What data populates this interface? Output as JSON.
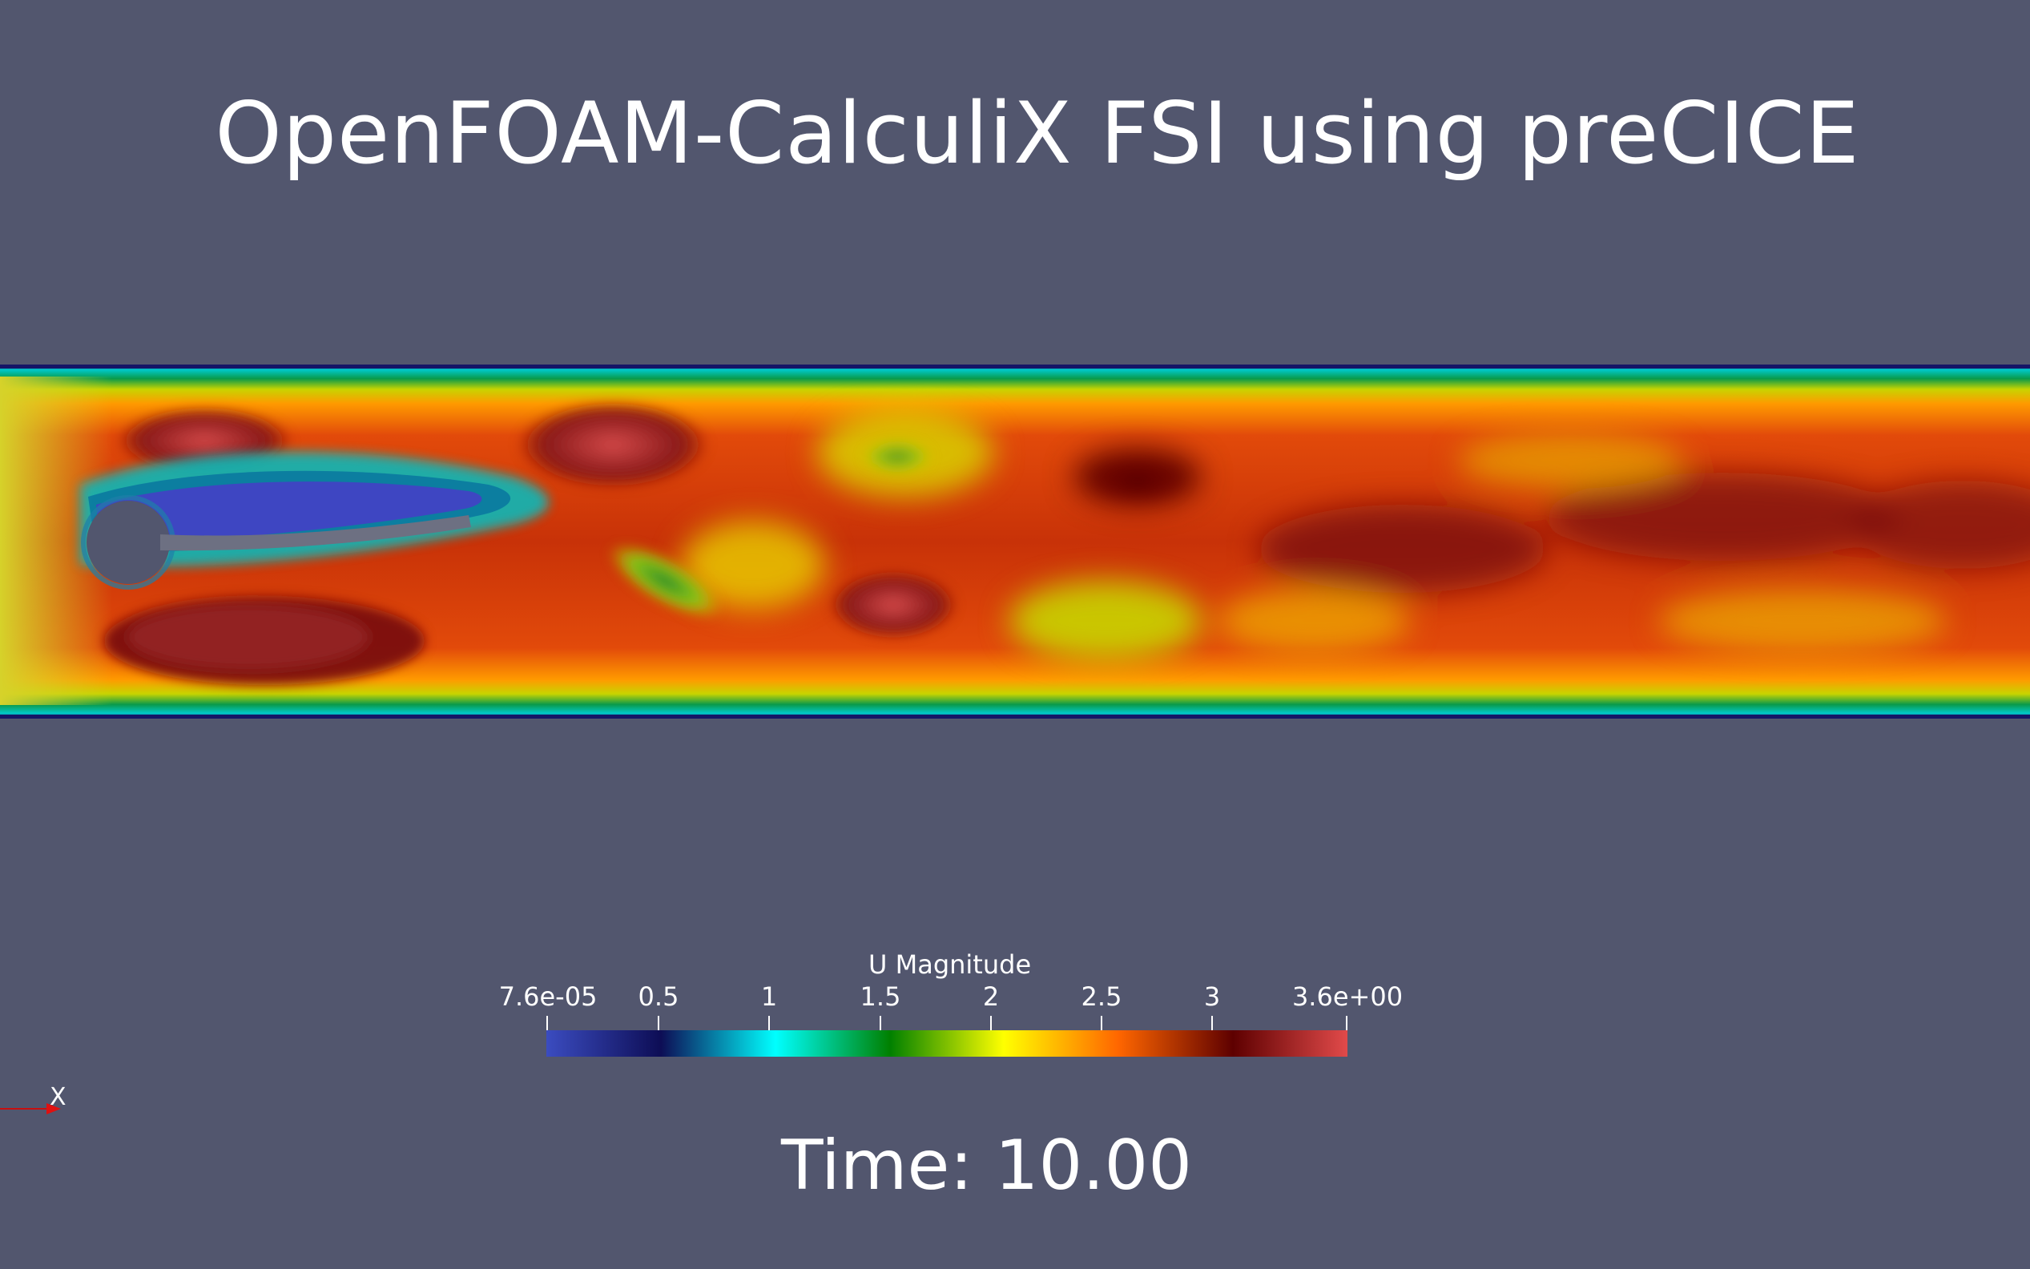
{
  "title": "OpenFOAM-CalculiX FSI using preCICE",
  "colorbar": {
    "title": "U Magnitude",
    "min_label": "7.6e-05",
    "max_label": "3.6e+00",
    "tick_labels": [
      "0.5",
      "1",
      "1.5",
      "2",
      "2.5",
      "3"
    ],
    "colors": [
      "#3b4cc0",
      "#0d0d55",
      "#00ffff",
      "#008000",
      "#ffff00",
      "#ff6600",
      "#5e0000",
      "#e14a4a"
    ]
  },
  "time_label": "Time: 10.00",
  "axes_label": "X",
  "colors": {
    "background": "#52566e"
  }
}
